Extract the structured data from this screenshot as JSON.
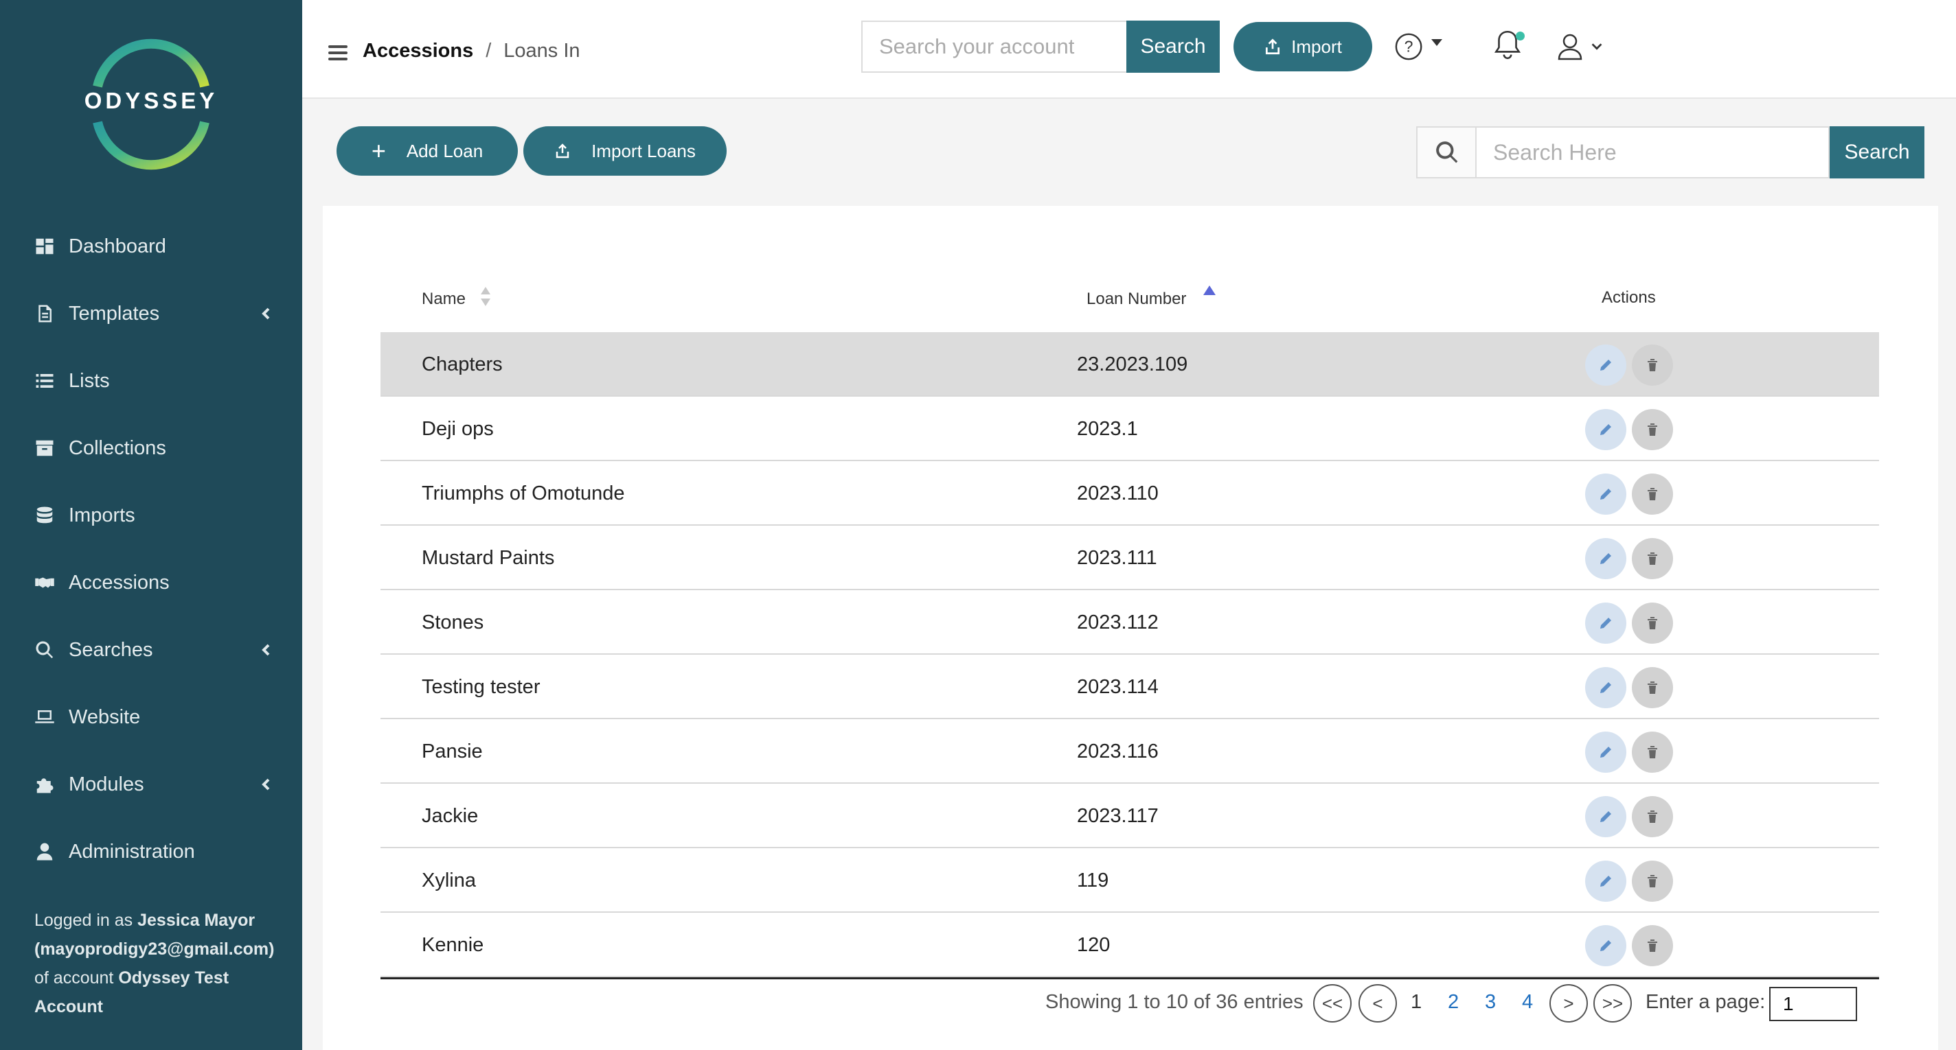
{
  "brand": {
    "name": "ODYSSEY"
  },
  "sidebar": {
    "items": [
      {
        "label": "Dashboard",
        "icon": "dashboard-icon",
        "has_chevron": false
      },
      {
        "label": "Templates",
        "icon": "document-icon",
        "has_chevron": true
      },
      {
        "label": "Lists",
        "icon": "list-icon",
        "has_chevron": false
      },
      {
        "label": "Collections",
        "icon": "archive-icon",
        "has_chevron": false
      },
      {
        "label": "Imports",
        "icon": "database-icon",
        "has_chevron": false
      },
      {
        "label": "Accessions",
        "icon": "handshake-icon",
        "has_chevron": false
      },
      {
        "label": "Searches",
        "icon": "search-icon",
        "has_chevron": true
      },
      {
        "label": "Website",
        "icon": "laptop-icon",
        "has_chevron": false
      },
      {
        "label": "Modules",
        "icon": "puzzle-icon",
        "has_chevron": true
      },
      {
        "label": "Administration",
        "icon": "user-icon",
        "has_chevron": false
      }
    ],
    "logged_in": {
      "prefix": "Logged in as ",
      "user": "Jessica Mayor (mayoprodigy23@gmail.com)",
      "middle": " of account ",
      "account": "Odyssey Test Account"
    }
  },
  "header": {
    "breadcrumb": {
      "main": "Accessions",
      "separator": "/",
      "current": "Loans In"
    },
    "account_search": {
      "placeholder": "Search your account",
      "button": "Search"
    },
    "import_button": "Import",
    "notification_dot_color": "#3cbfa8"
  },
  "toolbar": {
    "add_button": "Add Loan",
    "import_button": "Import Loans",
    "search": {
      "placeholder": "Search Here",
      "button": "Search"
    }
  },
  "table": {
    "columns": [
      "Name",
      "Loan Number",
      "Actions"
    ],
    "sort": {
      "column": "Loan Number",
      "direction": "ascending"
    },
    "rows": [
      {
        "name": "Chapters",
        "loan_number": "23.2023.109",
        "highlighted": true
      },
      {
        "name": "Deji ops",
        "loan_number": "2023.1"
      },
      {
        "name": "Triumphs of Omotunde",
        "loan_number": "2023.110"
      },
      {
        "name": "Mustard Paints",
        "loan_number": "2023.111"
      },
      {
        "name": "Stones",
        "loan_number": "2023.112"
      },
      {
        "name": "Testing tester",
        "loan_number": "2023.114"
      },
      {
        "name": "Pansie",
        "loan_number": "2023.116"
      },
      {
        "name": "Jackie",
        "loan_number": "2023.117"
      },
      {
        "name": "Xylina",
        "loan_number": "119"
      },
      {
        "name": "Kennie",
        "loan_number": "120"
      }
    ]
  },
  "pagination": {
    "summary": "Showing 1 to 10 of 36 entries",
    "first": "<<",
    "prev": "<",
    "pages": [
      "1",
      "2",
      "3",
      "4"
    ],
    "current_page": "1",
    "next": ">",
    "last": ">>",
    "enter_label": "Enter a page:",
    "page_input_value": "1"
  },
  "colors": {
    "sidebar_bg": "#1f4a59",
    "accent": "#2d6f7e",
    "link": "#1f6fbf",
    "sort_indicator": "#5a66d6"
  }
}
